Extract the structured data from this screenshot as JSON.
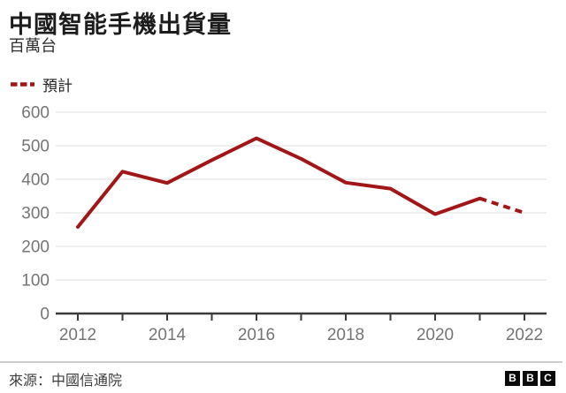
{
  "header": {
    "title": "中國智能手機出貨量",
    "subtitle": "百萬台"
  },
  "legend": {
    "forecast_label": "預計"
  },
  "colors": {
    "line": "#a11717",
    "grid": "#e5e5e5",
    "axis": "#3a3a3a",
    "tick_label": "#757575"
  },
  "chart_data": {
    "type": "line",
    "title": "中國智能手機出貨量",
    "ylabel_unit": "百萬台",
    "categories": [
      2012,
      2013,
      2014,
      2015,
      2016,
      2017,
      2018,
      2019,
      2020,
      2021,
      2022
    ],
    "series": [
      {
        "name": "出貨量",
        "style": "solid",
        "x": [
          2012,
          2013,
          2014,
          2015,
          2016,
          2017,
          2018,
          2019,
          2020,
          2021
        ],
        "values": [
          258,
          423,
          389,
          457,
          522,
          461,
          390,
          372,
          296,
          343
        ]
      },
      {
        "name": "預計",
        "style": "dashed",
        "x": [
          2021,
          2022
        ],
        "values": [
          343,
          300
        ]
      }
    ],
    "ylim": [
      0,
      600
    ],
    "yticks": [
      0,
      100,
      200,
      300,
      400,
      500,
      600
    ],
    "xticks_all": [
      2012,
      2013,
      2014,
      2015,
      2016,
      2017,
      2018,
      2019,
      2020,
      2021,
      2022
    ],
    "xticks_labeled": [
      2012,
      2014,
      2016,
      2018,
      2020,
      2022
    ],
    "grid": "horizontal",
    "legend_position": "top-left"
  },
  "footer": {
    "source": "來源：中國信通院",
    "logo_letters": [
      "B",
      "B",
      "C"
    ]
  }
}
